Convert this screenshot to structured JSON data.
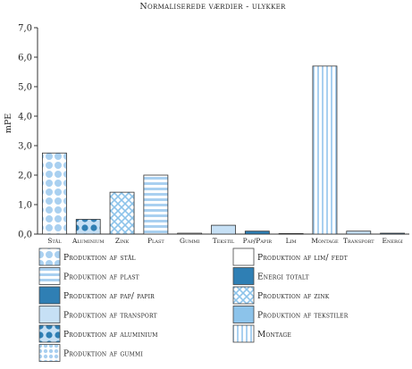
{
  "chart_data": {
    "type": "bar",
    "title": "Normaliserede værdier - ulykker",
    "ylabel": "mPE",
    "xlabel": "",
    "ylim": [
      0,
      7
    ],
    "yticks": [
      "0,0",
      "1,0",
      "2,0",
      "3,0",
      "4,0",
      "5,0",
      "6,0",
      "7,0"
    ],
    "grid": false,
    "categories": [
      "Stål",
      "Aluminium",
      "Zink",
      "Plast",
      "Gummi",
      "Tekstil",
      "Pap/Papir",
      "Lim",
      "Montage",
      "Transport",
      "Energi"
    ],
    "values": [
      2.75,
      0.5,
      1.42,
      2.0,
      0.03,
      0.3,
      0.1,
      0.02,
      5.7,
      0.1,
      0.03
    ],
    "patterns": [
      "dots-large",
      "dots-dark",
      "crosshatch",
      "hstripes",
      "none",
      "light",
      "dark",
      "none",
      "vstripes",
      "light",
      "dark"
    ]
  },
  "legend": {
    "placement": "bottom",
    "items": [
      {
        "label": "Produktion af stål",
        "pattern": "dots-large"
      },
      {
        "label": "Produktion af lim/ fedt",
        "pattern": "none"
      },
      {
        "label": "Produktion af plast",
        "pattern": "hstripes"
      },
      {
        "label": "Energi totalt",
        "pattern": "dark"
      },
      {
        "label": "Produktion af pap/ papir",
        "pattern": "dark"
      },
      {
        "label": "Produktion af zink",
        "pattern": "crosshatch"
      },
      {
        "label": "Produktion af transport",
        "pattern": "light"
      },
      {
        "label": "Produktion af tekstiler",
        "pattern": "medium"
      },
      {
        "label": "Produktion af aluminium",
        "pattern": "dots-dark"
      },
      {
        "label": "Montage",
        "pattern": "vstripes"
      },
      {
        "label": "Produktion af gummi",
        "pattern": "dots-small"
      }
    ]
  },
  "colors": {
    "light": "#c6e0f5",
    "medium": "#8cc3ea",
    "dark": "#2f7fb4",
    "outline": "#333333"
  }
}
